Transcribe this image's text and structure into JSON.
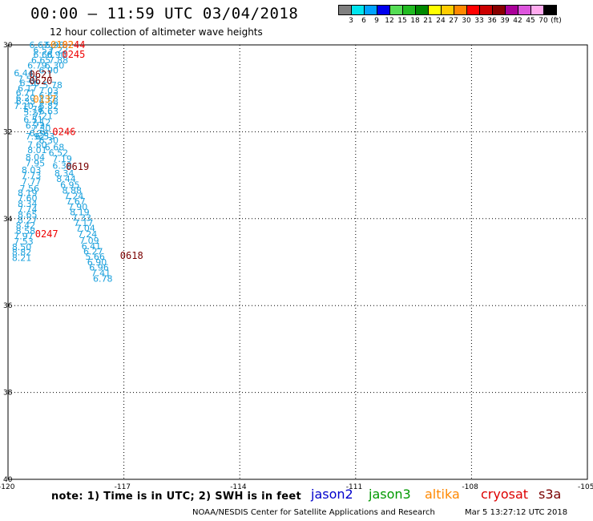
{
  "title": "00:00 – 11:59 UTC 03/04/2018",
  "subtitle": "12 hour collection of altimeter wave heights",
  "colorbar": {
    "colors": [
      "#7f7f7f",
      "#00e5ee",
      "#00a2ff",
      "#0000ee",
      "#55dd55",
      "#22bb22",
      "#008800",
      "#ffff00",
      "#ffcc00",
      "#ff8800",
      "#ff0000",
      "#cc0000",
      "#880000",
      "#aa0099",
      "#dd55dd",
      "#ffaaee",
      "#000000"
    ],
    "labels": [
      "3",
      "6",
      "9",
      "12",
      "15",
      "18",
      "21",
      "24",
      "27",
      "30",
      "33",
      "36",
      "39",
      "42",
      "45",
      "70",
      "(ft)"
    ]
  },
  "axes": {
    "lat_ticks": [
      "30",
      "32",
      "34",
      "36",
      "38",
      "40"
    ],
    "lon_ticks": [
      "-120",
      "-117",
      "-114",
      "-111",
      "-108",
      "-105"
    ]
  },
  "swh_values": [
    {
      "v": "6.67",
      "lon": -119.45,
      "lat": 30.0
    },
    {
      "v": "6.98",
      "lon": -119.05,
      "lat": 30.0
    },
    {
      "v": "6.53",
      "lon": -119.35,
      "lat": 30.12
    },
    {
      "v": "7.22",
      "lon": -118.95,
      "lat": 30.12
    },
    {
      "v": "6.68",
      "lon": -119.35,
      "lat": 30.22
    },
    {
      "v": "6.90",
      "lon": -119.0,
      "lat": 30.22
    },
    {
      "v": "6.65",
      "lon": -119.4,
      "lat": 30.35
    },
    {
      "v": "7.88",
      "lon": -118.95,
      "lat": 30.35
    },
    {
      "v": "6.79",
      "lon": -119.5,
      "lat": 30.47
    },
    {
      "v": "6.30",
      "lon": -119.05,
      "lat": 30.47
    },
    {
      "v": "6.90",
      "lon": -119.2,
      "lat": 30.58
    },
    {
      "v": "6.44",
      "lon": -119.85,
      "lat": 30.65
    },
    {
      "v": "7.50",
      "lon": -119.75,
      "lat": 30.78
    },
    {
      "v": "6.56",
      "lon": -119.7,
      "lat": 30.88
    },
    {
      "v": "5.78",
      "lon": -119.1,
      "lat": 30.92
    },
    {
      "v": "6.17",
      "lon": -119.75,
      "lat": 31.0
    },
    {
      "v": "7.03",
      "lon": -119.2,
      "lat": 31.05
    },
    {
      "v": "6.71",
      "lon": -119.8,
      "lat": 31.1
    },
    {
      "v": "6.63",
      "lon": -119.2,
      "lat": 31.16
    },
    {
      "v": "6.20",
      "lon": -119.8,
      "lat": 31.22
    },
    {
      "v": "6.33",
      "lon": -119.8,
      "lat": 31.3
    },
    {
      "v": "6.58",
      "lon": -119.2,
      "lat": 31.3
    },
    {
      "v": "6.82",
      "lon": -119.2,
      "lat": 31.4
    },
    {
      "v": "7.10",
      "lon": -119.85,
      "lat": 31.4
    },
    {
      "v": "5.78",
      "lon": -119.6,
      "lat": 31.48
    },
    {
      "v": "5.27",
      "lon": -119.6,
      "lat": 31.55
    },
    {
      "v": "6.63",
      "lon": -119.2,
      "lat": 31.52
    },
    {
      "v": "7.21",
      "lon": -119.35,
      "lat": 31.63
    },
    {
      "v": "6.51",
      "lon": -119.6,
      "lat": 31.72
    },
    {
      "v": "7.12",
      "lon": -119.4,
      "lat": 31.78
    },
    {
      "v": "6.72",
      "lon": -119.55,
      "lat": 31.85
    },
    {
      "v": "7.30",
      "lon": -119.4,
      "lat": 31.92
    },
    {
      "v": "6.36",
      "lon": -119.45,
      "lat": 32.03
    },
    {
      "v": "6.53",
      "lon": -119.3,
      "lat": 32.1
    },
    {
      "v": "7.92",
      "lon": -119.55,
      "lat": 32.1
    },
    {
      "v": "6.30",
      "lon": -119.2,
      "lat": 32.2
    },
    {
      "v": "7.60",
      "lon": -119.5,
      "lat": 32.3
    },
    {
      "v": "6.68",
      "lon": -119.05,
      "lat": 32.35
    },
    {
      "v": "8.01",
      "lon": -119.5,
      "lat": 32.42
    },
    {
      "v": "6.52",
      "lon": -118.95,
      "lat": 32.48
    },
    {
      "v": "8.04",
      "lon": -119.55,
      "lat": 32.58
    },
    {
      "v": "7.19",
      "lon": -118.85,
      "lat": 32.62
    },
    {
      "v": "7.95",
      "lon": -119.55,
      "lat": 32.72
    },
    {
      "v": "6.38",
      "lon": -118.85,
      "lat": 32.78
    },
    {
      "v": "8.03",
      "lon": -119.65,
      "lat": 32.88
    },
    {
      "v": "8.34",
      "lon": -118.8,
      "lat": 32.95
    },
    {
      "v": "7.73",
      "lon": -119.65,
      "lat": 33.0
    },
    {
      "v": "8.44",
      "lon": -118.75,
      "lat": 33.08
    },
    {
      "v": "7.77",
      "lon": -119.65,
      "lat": 33.15
    },
    {
      "v": "6.95",
      "lon": -118.65,
      "lat": 33.22
    },
    {
      "v": "7.56",
      "lon": -119.7,
      "lat": 33.3
    },
    {
      "v": "8.88",
      "lon": -118.6,
      "lat": 33.35
    },
    {
      "v": "8.19",
      "lon": -119.75,
      "lat": 33.4
    },
    {
      "v": "7.24",
      "lon": -118.55,
      "lat": 33.48
    },
    {
      "v": "7.60",
      "lon": -119.75,
      "lat": 33.52
    },
    {
      "v": "7.67",
      "lon": -118.5,
      "lat": 33.6
    },
    {
      "v": "8.34",
      "lon": -119.75,
      "lat": 33.65
    },
    {
      "v": "7.90",
      "lon": -118.45,
      "lat": 33.73
    },
    {
      "v": "7.74",
      "lon": -119.75,
      "lat": 33.78
    },
    {
      "v": "8.19",
      "lon": -118.4,
      "lat": 33.85
    },
    {
      "v": "8.65",
      "lon": -119.75,
      "lat": 33.9
    },
    {
      "v": "7.33",
      "lon": -118.35,
      "lat": 33.98
    },
    {
      "v": "8.27",
      "lon": -119.75,
      "lat": 34.03
    },
    {
      "v": "7.17",
      "lon": -118.3,
      "lat": 34.1
    },
    {
      "v": "8.42",
      "lon": -119.8,
      "lat": 34.15
    },
    {
      "v": "7.04",
      "lon": -118.25,
      "lat": 34.22
    },
    {
      "v": "8.58",
      "lon": -119.8,
      "lat": 34.28
    },
    {
      "v": "7.24",
      "lon": -118.2,
      "lat": 34.35
    },
    {
      "v": "7.97",
      "lon": -119.85,
      "lat": 34.4
    },
    {
      "v": "7.09",
      "lon": -118.15,
      "lat": 34.5
    },
    {
      "v": "7.53",
      "lon": -119.85,
      "lat": 34.52
    },
    {
      "v": "6.41",
      "lon": -118.1,
      "lat": 34.63
    },
    {
      "v": "8.50",
      "lon": -119.9,
      "lat": 34.65
    },
    {
      "v": "6.27",
      "lon": -118.05,
      "lat": 34.75
    },
    {
      "v": "8.82",
      "lon": -119.9,
      "lat": 34.77
    },
    {
      "v": "5.66",
      "lon": -118.0,
      "lat": 34.87
    },
    {
      "v": "8.21",
      "lon": -119.9,
      "lat": 34.9
    },
    {
      "v": "6.90",
      "lon": -117.95,
      "lat": 35.0
    },
    {
      "v": "6.96",
      "lon": -117.9,
      "lat": 35.12
    },
    {
      "v": "7.41",
      "lon": -117.85,
      "lat": 35.25
    },
    {
      "v": "6.78",
      "lon": -117.8,
      "lat": 35.38
    }
  ],
  "pass_labels": [
    {
      "t": "0244",
      "lon": -118.6,
      "lat": 30.0,
      "color": "#ee0000"
    },
    {
      "t": "0102",
      "lon": -118.9,
      "lat": 30.0,
      "color": "#ff8800"
    },
    {
      "t": "0245",
      "lon": -118.6,
      "lat": 30.22,
      "color": "#ee0000"
    },
    {
      "t": "0621",
      "lon": -119.45,
      "lat": 30.68,
      "color": "#7a0000"
    },
    {
      "t": "0620",
      "lon": -119.45,
      "lat": 30.83,
      "color": "#7a0000"
    },
    {
      "t": "0137",
      "lon": -119.35,
      "lat": 31.25,
      "color": "#ff8800"
    },
    {
      "t": "0246",
      "lon": -118.85,
      "lat": 32.0,
      "color": "#ee0000"
    },
    {
      "t": "0619",
      "lon": -118.5,
      "lat": 32.8,
      "color": "#7a0000"
    },
    {
      "t": "0247",
      "lon": -119.3,
      "lat": 34.35,
      "color": "#ee0000"
    },
    {
      "t": "0618",
      "lon": -117.1,
      "lat": 34.85,
      "color": "#7a0000"
    }
  ],
  "footer_note": "note:  1) Time is in UTC;  2) SWH is in feet",
  "legend": [
    {
      "name": "jason2",
      "color": "#0000cc"
    },
    {
      "name": "jason3",
      "color": "#009900"
    },
    {
      "name": "altika",
      "color": "#ff8800"
    },
    {
      "name": "cryosat",
      "color": "#dd0000"
    },
    {
      "name": "s3a",
      "color": "#7a0000"
    }
  ],
  "credit": "NOAA/NESDIS Center for Satellite Applications and Research",
  "timestamp": "Mar  5 13:27:12 UTC 2018"
}
